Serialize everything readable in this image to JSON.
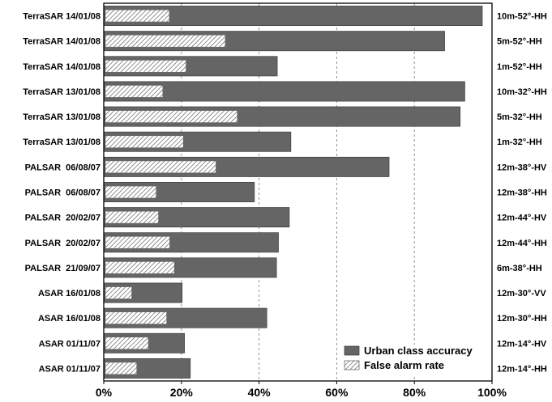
{
  "chart_data": {
    "type": "bar",
    "orientation": "horizontal",
    "stacking": "overlay",
    "categories": [
      "TerraSAR 14/01/08",
      "TerraSAR 14/01/08",
      "TerraSAR 14/01/08",
      "TerraSAR 13/01/08",
      "TerraSAR 13/01/08",
      "TerraSAR 13/01/08",
      "PALSAR  06/08/07",
      "PALSAR  06/08/07",
      "PALSAR  20/02/07",
      "PALSAR  20/02/07",
      "PALSAR  21/09/07",
      "ASAR 16/01/08",
      "ASAR 16/01/08",
      "ASAR 01/11/07",
      "ASAR 01/11/07"
    ],
    "right_labels": [
      "10m-52°-HH",
      "5m-52°-HH",
      "1m-52°-HH",
      "10m-32°-HH",
      "5m-32°-HH",
      "1m-32°-HH",
      "12m-38°-HV",
      "12m-38°-HH",
      "12m-44°-HV",
      "12m-44°-HH",
      "6m-38°-HH",
      "12m-30°-VV",
      "12m-30°-HH",
      "12m-14°-HV",
      "12m-14°-HH"
    ],
    "series": [
      {
        "name": "Urban class accuracy",
        "color": "#656565",
        "pattern": "solid",
        "values": [
          97.5,
          87.8,
          44.7,
          93.0,
          91.8,
          48.2,
          73.5,
          38.8,
          47.8,
          45.0,
          44.5,
          20.2,
          42.0,
          20.8,
          22.3
        ]
      },
      {
        "name": "False alarm rate",
        "color": "#ffffff",
        "pattern": "hatched",
        "values": [
          16.9,
          31.3,
          21.2,
          15.2,
          34.4,
          20.5,
          28.9,
          13.5,
          14.1,
          17.0,
          18.2,
          7.2,
          16.2,
          11.5,
          8.5
        ]
      }
    ],
    "xlim": [
      0,
      100
    ],
    "x_ticks": [
      "0%",
      "20%",
      "40%",
      "60%",
      "80%",
      "100%"
    ],
    "x_tick_values": [
      0,
      20,
      40,
      60,
      80,
      100
    ],
    "grid": "vertical dashed",
    "legend_position": "bottom-right"
  }
}
